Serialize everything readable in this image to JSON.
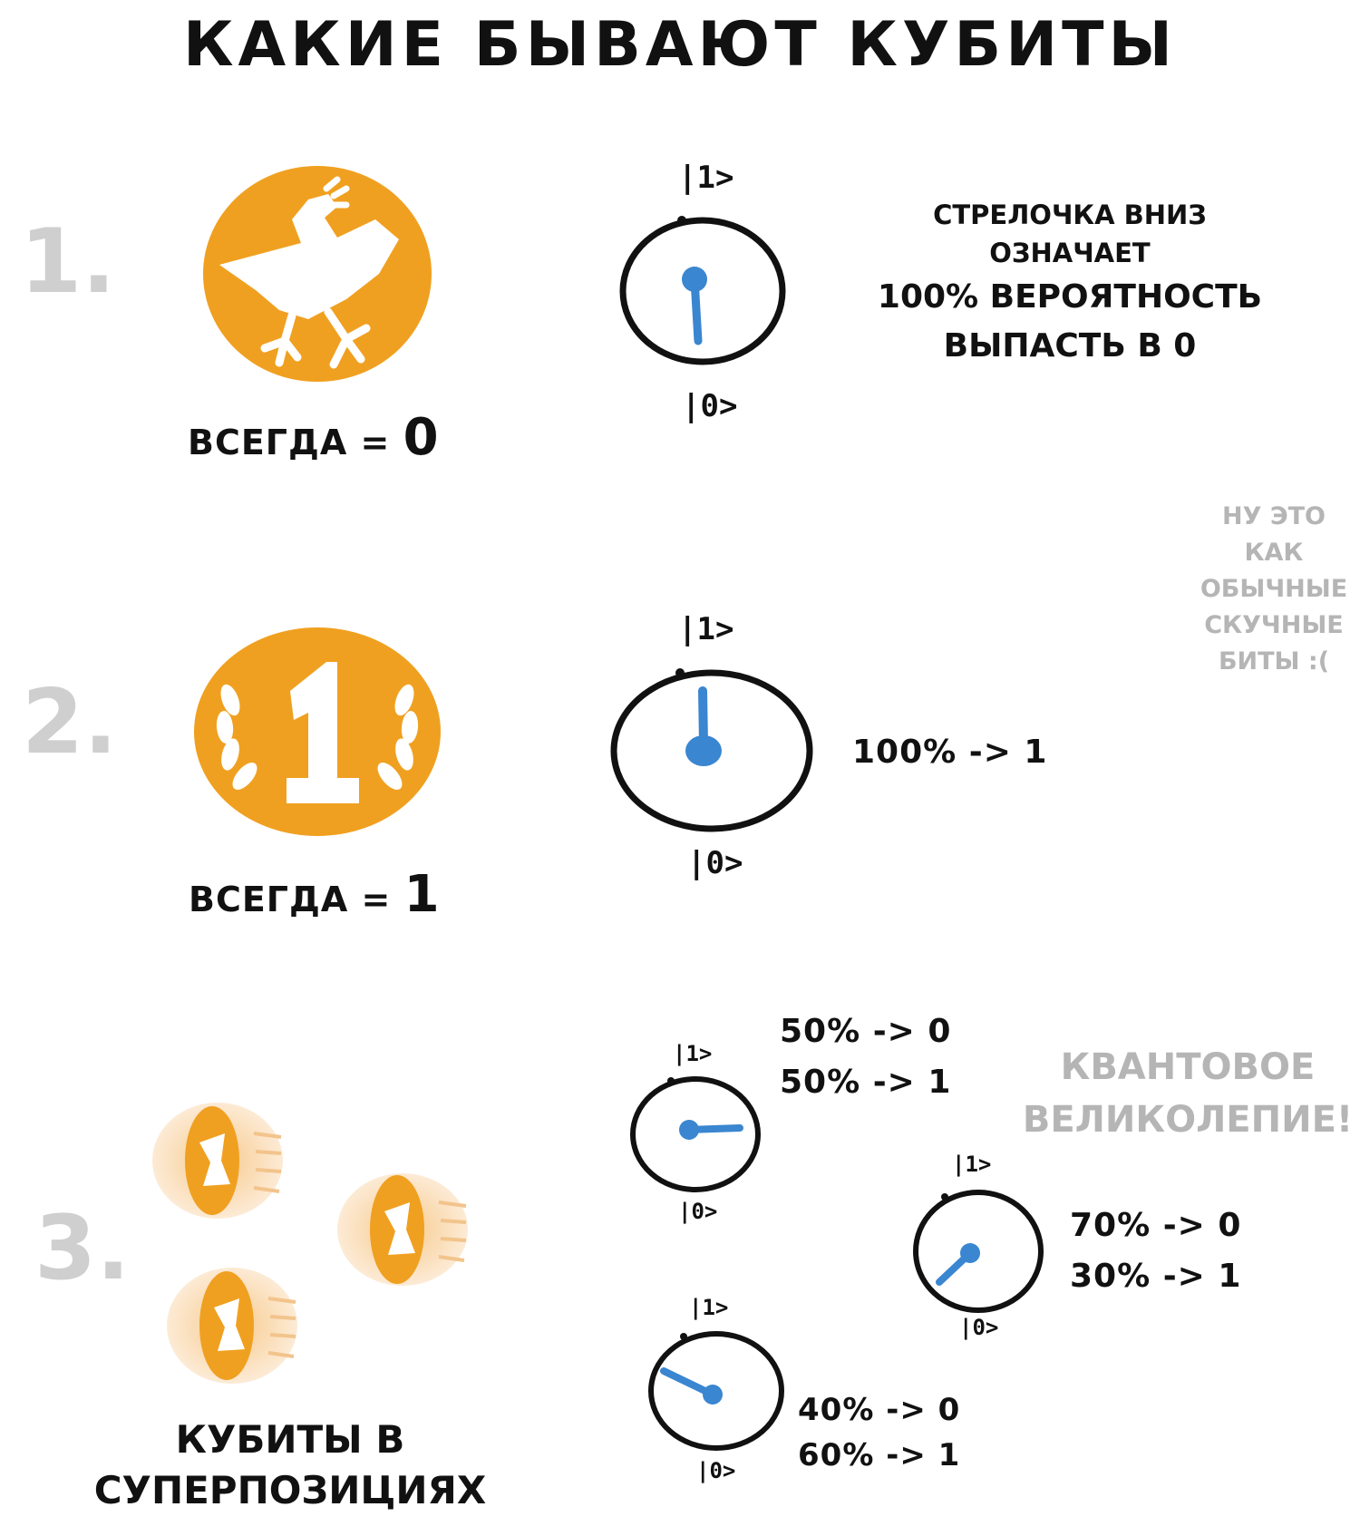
{
  "title": "КАКИЕ БЫВАЮТ КУБИТЫ",
  "colors": {
    "orange": "#f0a020",
    "blue": "#3a86d0",
    "ink": "#111111",
    "grey": "#b8b8b8"
  },
  "sections": [
    {
      "number": "1.",
      "icon": "bird-coin-icon",
      "caption_prefix": "ВСЕГДА =",
      "caption_value": "0",
      "ket_top": "|1>",
      "ket_bottom": "|0>",
      "note_lines": [
        "СТРЕЛОЧКА ВНИЗ",
        "ОЗНАЧАЕТ",
        "100% ВЕРОЯТНОСТЬ",
        "ВЫПАСТЬ В 0"
      ]
    },
    {
      "number": "2.",
      "icon": "laurel-one-coin-icon",
      "caption_prefix": "ВСЕГДА =",
      "caption_value": "1",
      "ket_top": "|1>",
      "ket_bottom": "|0>",
      "note": "100% -> 1"
    },
    {
      "number": "3.",
      "icon": "spinning-coins-icon",
      "caption_lines": [
        "КУБИТЫ В",
        "СУПЕРПОЗИЦИЯХ"
      ],
      "dials": [
        {
          "ket_top": "|1>",
          "ket_bottom": "|0>",
          "probs": [
            "50% -> 0",
            "50% -> 1"
          ]
        },
        {
          "ket_top": "|1>",
          "ket_bottom": "|0>",
          "probs": [
            "70% -> 0",
            "30% -> 1"
          ]
        },
        {
          "ket_top": "|1>",
          "ket_bottom": "|0>",
          "probs": [
            "40% -> 0",
            "60% -> 1"
          ]
        }
      ]
    }
  ],
  "side_note": [
    "НУ ЭТО",
    "КАК",
    "ОБЫЧНЫЕ",
    "СКУЧНЫЕ",
    "БИТЫ :("
  ],
  "quantum_note": [
    "КВАНТОВОЕ",
    "ВЕЛИКОЛЕПИЕ!"
  ]
}
